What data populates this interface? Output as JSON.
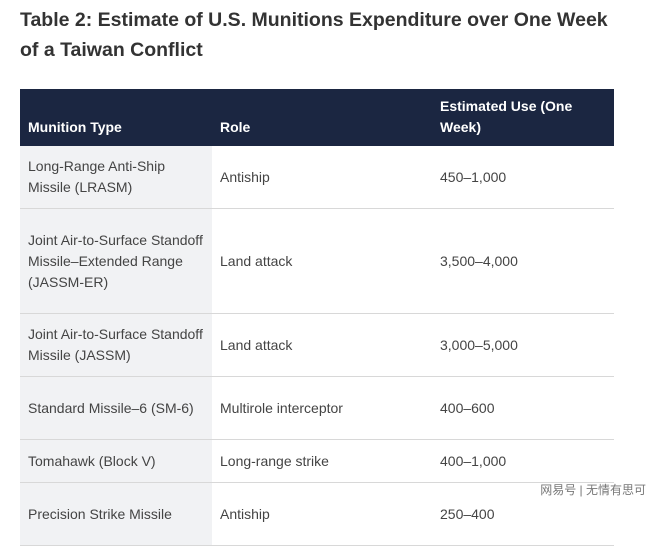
{
  "title": "Table 2: Estimate of U.S. Munitions Expenditure over One Week of a Taiwan Conflict",
  "table": {
    "header": [
      "Munition Type",
      "Role",
      "Estimated Use (One Week)"
    ],
    "rows": [
      [
        "Long-Range Anti-Ship Missile (LRASM)",
        "Antiship",
        "450–1,000"
      ],
      [
        "Joint Air-to-Surface Standoff Missile–Extended Range (JASSM-ER)",
        "Land attack",
        "3,500–4,000"
      ],
      [
        "Joint Air-to-Surface Standoff Missile (JASSM)",
        "Land attack",
        "3,000–5,000"
      ],
      [
        "Standard Missile–6 (SM-6)",
        "Multirole interceptor",
        "400–600"
      ],
      [
        "Tomahawk (Block V)",
        "Long-range strike",
        "400–1,000"
      ],
      [
        "Precision Strike Missile",
        "Antiship",
        "250–400"
      ]
    ]
  },
  "watermark": "网易号 | 无情有思可"
}
